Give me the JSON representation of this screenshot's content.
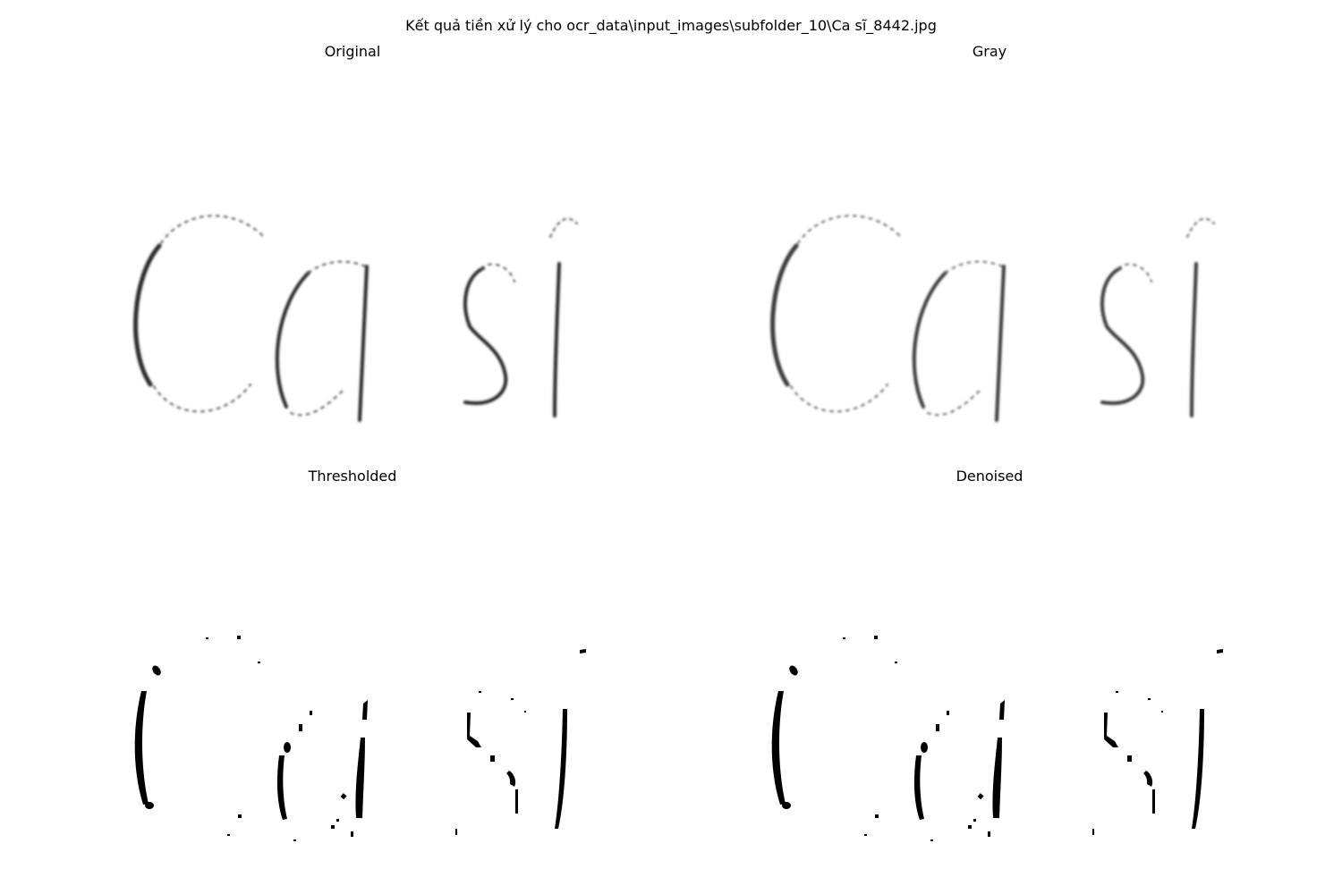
{
  "figure": {
    "suptitle": "Kết quả tiền xử lý cho ocr_data\\input_images\\subfolder_10\\Ca sĩ_8442.jpg",
    "panels": [
      {
        "title": "Original"
      },
      {
        "title": "Gray"
      },
      {
        "title": "Thresholded"
      },
      {
        "title": "Denoised"
      }
    ]
  },
  "colors": {
    "background": "#ffffff",
    "ink": "#000000",
    "gray_ink": "#3a3a3a"
  }
}
